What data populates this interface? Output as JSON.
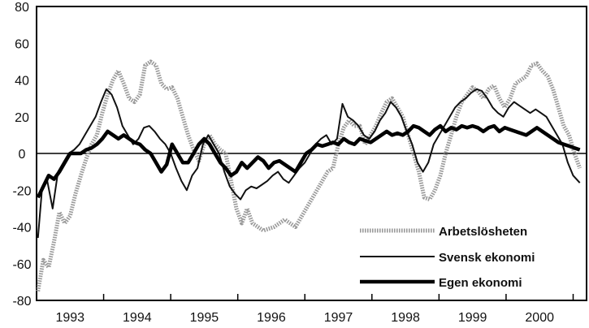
{
  "chart_data": {
    "type": "line",
    "title": "",
    "xlabel": "",
    "ylabel": "",
    "ylim": [
      -80,
      80
    ],
    "xlim": [
      1992.7,
      2000.9
    ],
    "yticks": [
      80,
      60,
      40,
      20,
      0,
      -20,
      -40,
      -60,
      -80
    ],
    "ytick_labels": [
      "80",
      "60",
      "40",
      "20",
      "0",
      "-20",
      "-40",
      "-60",
      "-80"
    ],
    "xtick_labels": [
      "1993",
      "1994",
      "1995",
      "1996",
      "1997",
      "1998",
      "1999",
      "2000"
    ],
    "xtick_positions": [
      1993.2,
      1994.2,
      1995.2,
      1996.2,
      1997.2,
      1998.2,
      1999.2,
      2000.2
    ],
    "zero_line": true,
    "grid": false,
    "legend_position": "bottom-right",
    "legend": [
      "Arbetslösheten",
      "Svensk ekonomi",
      "Egen ekonomi"
    ],
    "series": [
      {
        "name": "Arbetslösheten",
        "color": "#9a9a9a",
        "style": "thick-dotted",
        "points": [
          [
            1992.72,
            -75
          ],
          [
            1992.8,
            -58
          ],
          [
            1992.88,
            -62
          ],
          [
            1992.96,
            -48
          ],
          [
            1993.04,
            -32
          ],
          [
            1993.12,
            -38
          ],
          [
            1993.2,
            -34
          ],
          [
            1993.28,
            -22
          ],
          [
            1993.36,
            -12
          ],
          [
            1993.44,
            -3
          ],
          [
            1993.52,
            5
          ],
          [
            1993.6,
            10
          ],
          [
            1993.68,
            22
          ],
          [
            1993.76,
            32
          ],
          [
            1993.84,
            40
          ],
          [
            1993.92,
            45
          ],
          [
            1994.0,
            38
          ],
          [
            1994.08,
            30
          ],
          [
            1994.16,
            28
          ],
          [
            1994.24,
            32
          ],
          [
            1994.32,
            48
          ],
          [
            1994.4,
            50
          ],
          [
            1994.48,
            48
          ],
          [
            1994.56,
            38
          ],
          [
            1994.64,
            35
          ],
          [
            1994.72,
            36
          ],
          [
            1994.8,
            30
          ],
          [
            1994.88,
            20
          ],
          [
            1994.96,
            10
          ],
          [
            1995.04,
            2
          ],
          [
            1995.12,
            -4
          ],
          [
            1995.2,
            5
          ],
          [
            1995.28,
            10
          ],
          [
            1995.36,
            5
          ],
          [
            1995.44,
            2
          ],
          [
            1995.52,
            0
          ],
          [
            1995.6,
            -15
          ],
          [
            1995.68,
            -30
          ],
          [
            1995.76,
            -38
          ],
          [
            1995.84,
            -30
          ],
          [
            1995.92,
            -38
          ],
          [
            1996.0,
            -40
          ],
          [
            1996.08,
            -42
          ],
          [
            1996.16,
            -41
          ],
          [
            1996.24,
            -40
          ],
          [
            1996.32,
            -38
          ],
          [
            1996.4,
            -36
          ],
          [
            1996.48,
            -38
          ],
          [
            1996.56,
            -40
          ],
          [
            1996.64,
            -35
          ],
          [
            1996.72,
            -30
          ],
          [
            1996.8,
            -25
          ],
          [
            1996.88,
            -20
          ],
          [
            1996.96,
            -15
          ],
          [
            1997.04,
            -10
          ],
          [
            1997.12,
            -8
          ],
          [
            1997.2,
            5
          ],
          [
            1997.28,
            14
          ],
          [
            1997.36,
            18
          ],
          [
            1997.44,
            15
          ],
          [
            1997.52,
            15
          ],
          [
            1997.6,
            5
          ],
          [
            1997.68,
            10
          ],
          [
            1997.76,
            15
          ],
          [
            1997.84,
            22
          ],
          [
            1997.92,
            28
          ],
          [
            1998.0,
            30
          ],
          [
            1998.08,
            25
          ],
          [
            1998.16,
            20
          ],
          [
            1998.24,
            10
          ],
          [
            1998.32,
            0
          ],
          [
            1998.4,
            -10
          ],
          [
            1998.48,
            -24
          ],
          [
            1998.56,
            -25
          ],
          [
            1998.64,
            -20
          ],
          [
            1998.72,
            -12
          ],
          [
            1998.8,
            0
          ],
          [
            1998.88,
            10
          ],
          [
            1998.96,
            20
          ],
          [
            1999.04,
            28
          ],
          [
            1999.12,
            32
          ],
          [
            1999.2,
            36
          ],
          [
            1999.28,
            34
          ],
          [
            1999.36,
            30
          ],
          [
            1999.44,
            35
          ],
          [
            1999.52,
            37
          ],
          [
            1999.6,
            30
          ],
          [
            1999.68,
            25
          ],
          [
            1999.76,
            30
          ],
          [
            1999.84,
            38
          ],
          [
            1999.92,
            40
          ],
          [
            2000.0,
            42
          ],
          [
            2000.08,
            48
          ],
          [
            2000.16,
            49
          ],
          [
            2000.24,
            45
          ],
          [
            2000.32,
            42
          ],
          [
            2000.4,
            35
          ],
          [
            2000.48,
            25
          ],
          [
            2000.56,
            15
          ],
          [
            2000.64,
            10
          ],
          [
            2000.72,
            0
          ],
          [
            2000.8,
            -8
          ]
        ]
      },
      {
        "name": "Svensk ekonomi",
        "color": "#111111",
        "style": "thin",
        "points": [
          [
            1992.72,
            -46
          ],
          [
            1992.78,
            -20
          ],
          [
            1992.86,
            -15
          ],
          [
            1992.94,
            -30
          ],
          [
            1993.02,
            -10
          ],
          [
            1993.1,
            -5
          ],
          [
            1993.18,
            0
          ],
          [
            1993.26,
            2
          ],
          [
            1993.34,
            5
          ],
          [
            1993.42,
            10
          ],
          [
            1993.5,
            15
          ],
          [
            1993.58,
            20
          ],
          [
            1993.66,
            28
          ],
          [
            1993.74,
            35
          ],
          [
            1993.82,
            32
          ],
          [
            1993.9,
            25
          ],
          [
            1993.98,
            15
          ],
          [
            1994.06,
            10
          ],
          [
            1994.14,
            5
          ],
          [
            1994.22,
            8
          ],
          [
            1994.3,
            14
          ],
          [
            1994.38,
            15
          ],
          [
            1994.46,
            12
          ],
          [
            1994.54,
            8
          ],
          [
            1994.62,
            5
          ],
          [
            1994.7,
            0
          ],
          [
            1994.78,
            -8
          ],
          [
            1994.86,
            -15
          ],
          [
            1994.94,
            -20
          ],
          [
            1995.02,
            -12
          ],
          [
            1995.1,
            -8
          ],
          [
            1995.18,
            5
          ],
          [
            1995.26,
            10
          ],
          [
            1995.34,
            5
          ],
          [
            1995.42,
            0
          ],
          [
            1995.5,
            -10
          ],
          [
            1995.58,
            -18
          ],
          [
            1995.66,
            -22
          ],
          [
            1995.74,
            -25
          ],
          [
            1995.82,
            -20
          ],
          [
            1995.9,
            -18
          ],
          [
            1995.98,
            -19
          ],
          [
            1996.06,
            -17
          ],
          [
            1996.14,
            -15
          ],
          [
            1996.22,
            -12
          ],
          [
            1996.3,
            -10
          ],
          [
            1996.38,
            -14
          ],
          [
            1996.46,
            -16
          ],
          [
            1996.54,
            -12
          ],
          [
            1996.62,
            -8
          ],
          [
            1996.7,
            -5
          ],
          [
            1996.78,
            0
          ],
          [
            1996.86,
            5
          ],
          [
            1996.94,
            8
          ],
          [
            1997.02,
            10
          ],
          [
            1997.1,
            5
          ],
          [
            1997.18,
            8
          ],
          [
            1997.26,
            27
          ],
          [
            1997.34,
            20
          ],
          [
            1997.42,
            18
          ],
          [
            1997.5,
            15
          ],
          [
            1997.58,
            10
          ],
          [
            1997.66,
            8
          ],
          [
            1997.74,
            12
          ],
          [
            1997.82,
            18
          ],
          [
            1997.9,
            22
          ],
          [
            1997.98,
            28
          ],
          [
            1998.06,
            25
          ],
          [
            1998.14,
            20
          ],
          [
            1998.22,
            12
          ],
          [
            1998.3,
            5
          ],
          [
            1998.38,
            -5
          ],
          [
            1998.46,
            -10
          ],
          [
            1998.54,
            -5
          ],
          [
            1998.62,
            5
          ],
          [
            1998.7,
            10
          ],
          [
            1998.78,
            15
          ],
          [
            1998.86,
            20
          ],
          [
            1998.94,
            25
          ],
          [
            1999.02,
            28
          ],
          [
            1999.1,
            30
          ],
          [
            1999.18,
            33
          ],
          [
            1999.26,
            35
          ],
          [
            1999.34,
            34
          ],
          [
            1999.42,
            30
          ],
          [
            1999.5,
            25
          ],
          [
            1999.58,
            22
          ],
          [
            1999.66,
            20
          ],
          [
            1999.74,
            25
          ],
          [
            1999.82,
            28
          ],
          [
            1999.9,
            26
          ],
          [
            1999.98,
            24
          ],
          [
            2000.06,
            22
          ],
          [
            2000.14,
            24
          ],
          [
            2000.22,
            22
          ],
          [
            2000.3,
            20
          ],
          [
            2000.38,
            15
          ],
          [
            2000.46,
            10
          ],
          [
            2000.54,
            5
          ],
          [
            2000.62,
            -5
          ],
          [
            2000.7,
            -12
          ],
          [
            2000.8,
            -16
          ]
        ]
      },
      {
        "name": "Egen ekonomi",
        "color": "#000000",
        "style": "thick",
        "points": [
          [
            1992.72,
            -24
          ],
          [
            1992.8,
            -18
          ],
          [
            1992.88,
            -12
          ],
          [
            1992.96,
            -14
          ],
          [
            1993.04,
            -10
          ],
          [
            1993.12,
            -5
          ],
          [
            1993.2,
            0
          ],
          [
            1993.28,
            0
          ],
          [
            1993.36,
            0
          ],
          [
            1993.44,
            2
          ],
          [
            1993.52,
            3
          ],
          [
            1993.6,
            5
          ],
          [
            1993.68,
            8
          ],
          [
            1993.76,
            12
          ],
          [
            1993.84,
            10
          ],
          [
            1993.92,
            8
          ],
          [
            1994.0,
            10
          ],
          [
            1994.08,
            8
          ],
          [
            1994.16,
            6
          ],
          [
            1994.24,
            5
          ],
          [
            1994.32,
            2
          ],
          [
            1994.4,
            0
          ],
          [
            1994.48,
            -5
          ],
          [
            1994.56,
            -10
          ],
          [
            1994.64,
            -6
          ],
          [
            1994.72,
            5
          ],
          [
            1994.8,
            0
          ],
          [
            1994.88,
            -5
          ],
          [
            1994.96,
            -5
          ],
          [
            1995.04,
            0
          ],
          [
            1995.12,
            5
          ],
          [
            1995.2,
            8
          ],
          [
            1995.28,
            5
          ],
          [
            1995.36,
            0
          ],
          [
            1995.44,
            -5
          ],
          [
            1995.52,
            -8
          ],
          [
            1995.6,
            -12
          ],
          [
            1995.68,
            -10
          ],
          [
            1995.76,
            -5
          ],
          [
            1995.84,
            -8
          ],
          [
            1995.92,
            -5
          ],
          [
            1996.0,
            -2
          ],
          [
            1996.08,
            -4
          ],
          [
            1996.16,
            -8
          ],
          [
            1996.24,
            -5
          ],
          [
            1996.32,
            -4
          ],
          [
            1996.4,
            -6
          ],
          [
            1996.48,
            -8
          ],
          [
            1996.56,
            -10
          ],
          [
            1996.64,
            -5
          ],
          [
            1996.72,
            0
          ],
          [
            1996.8,
            2
          ],
          [
            1996.88,
            5
          ],
          [
            1996.96,
            4
          ],
          [
            1997.04,
            5
          ],
          [
            1997.12,
            6
          ],
          [
            1997.2,
            5
          ],
          [
            1997.28,
            8
          ],
          [
            1997.36,
            6
          ],
          [
            1997.44,
            5
          ],
          [
            1997.52,
            8
          ],
          [
            1997.6,
            7
          ],
          [
            1997.68,
            6
          ],
          [
            1997.76,
            8
          ],
          [
            1997.84,
            10
          ],
          [
            1997.92,
            12
          ],
          [
            1998.0,
            10
          ],
          [
            1998.08,
            11
          ],
          [
            1998.16,
            10
          ],
          [
            1998.24,
            12
          ],
          [
            1998.32,
            15
          ],
          [
            1998.4,
            14
          ],
          [
            1998.48,
            12
          ],
          [
            1998.56,
            10
          ],
          [
            1998.64,
            13
          ],
          [
            1998.72,
            15
          ],
          [
            1998.8,
            12
          ],
          [
            1998.88,
            14
          ],
          [
            1998.96,
            13
          ],
          [
            1999.04,
            15
          ],
          [
            1999.12,
            14
          ],
          [
            1999.2,
            15
          ],
          [
            1999.28,
            14
          ],
          [
            1999.36,
            12
          ],
          [
            1999.44,
            14
          ],
          [
            1999.52,
            15
          ],
          [
            1999.6,
            12
          ],
          [
            1999.68,
            14
          ],
          [
            1999.76,
            13
          ],
          [
            1999.84,
            12
          ],
          [
            1999.92,
            11
          ],
          [
            2000.0,
            10
          ],
          [
            2000.08,
            12
          ],
          [
            2000.16,
            14
          ],
          [
            2000.24,
            12
          ],
          [
            2000.32,
            10
          ],
          [
            2000.4,
            8
          ],
          [
            2000.48,
            6
          ],
          [
            2000.56,
            5
          ],
          [
            2000.64,
            4
          ],
          [
            2000.72,
            3
          ],
          [
            2000.8,
            2
          ]
        ]
      }
    ]
  }
}
